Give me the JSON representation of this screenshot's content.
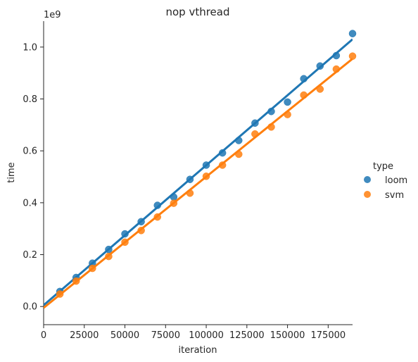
{
  "chart_data": {
    "type": "scatter",
    "title": "nop vthread",
    "xlabel": "iteration",
    "ylabel": "time",
    "y_offset_text": "1e9",
    "xlim": [
      0,
      190000
    ],
    "ylim": [
      -0.07,
      1.1
    ],
    "x_ticks": [
      0,
      25000,
      50000,
      75000,
      100000,
      125000,
      150000,
      175000
    ],
    "y_ticks": [
      0.0,
      0.2,
      0.4,
      0.6,
      0.8,
      1.0
    ],
    "legend_title": "type",
    "legend_position": "right",
    "grid": false,
    "series": [
      {
        "name": "loom",
        "color": "#1f77b4",
        "x": [
          10000,
          20000,
          30000,
          40000,
          50000,
          60000,
          70000,
          80000,
          90000,
          100000,
          110000,
          120000,
          130000,
          140000,
          150000,
          160000,
          170000,
          180000,
          190000
        ],
        "y": [
          0.058,
          0.112,
          0.167,
          0.22,
          0.28,
          0.327,
          0.39,
          0.422,
          0.49,
          0.545,
          0.592,
          0.64,
          0.707,
          0.752,
          0.788,
          0.878,
          0.927,
          0.967,
          1.052
        ],
        "fit": [
          0.005,
          1.03
        ]
      },
      {
        "name": "svm",
        "color": "#ff7f0e",
        "x": [
          10000,
          20000,
          30000,
          40000,
          50000,
          60000,
          70000,
          80000,
          90000,
          100000,
          110000,
          120000,
          130000,
          140000,
          150000,
          160000,
          170000,
          180000,
          190000
        ],
        "y": [
          0.048,
          0.098,
          0.147,
          0.193,
          0.248,
          0.293,
          0.345,
          0.398,
          0.437,
          0.502,
          0.545,
          0.587,
          0.665,
          0.692,
          0.74,
          0.815,
          0.838,
          0.915,
          0.965
        ],
        "fit": [
          -0.005,
          0.955
        ]
      }
    ]
  }
}
